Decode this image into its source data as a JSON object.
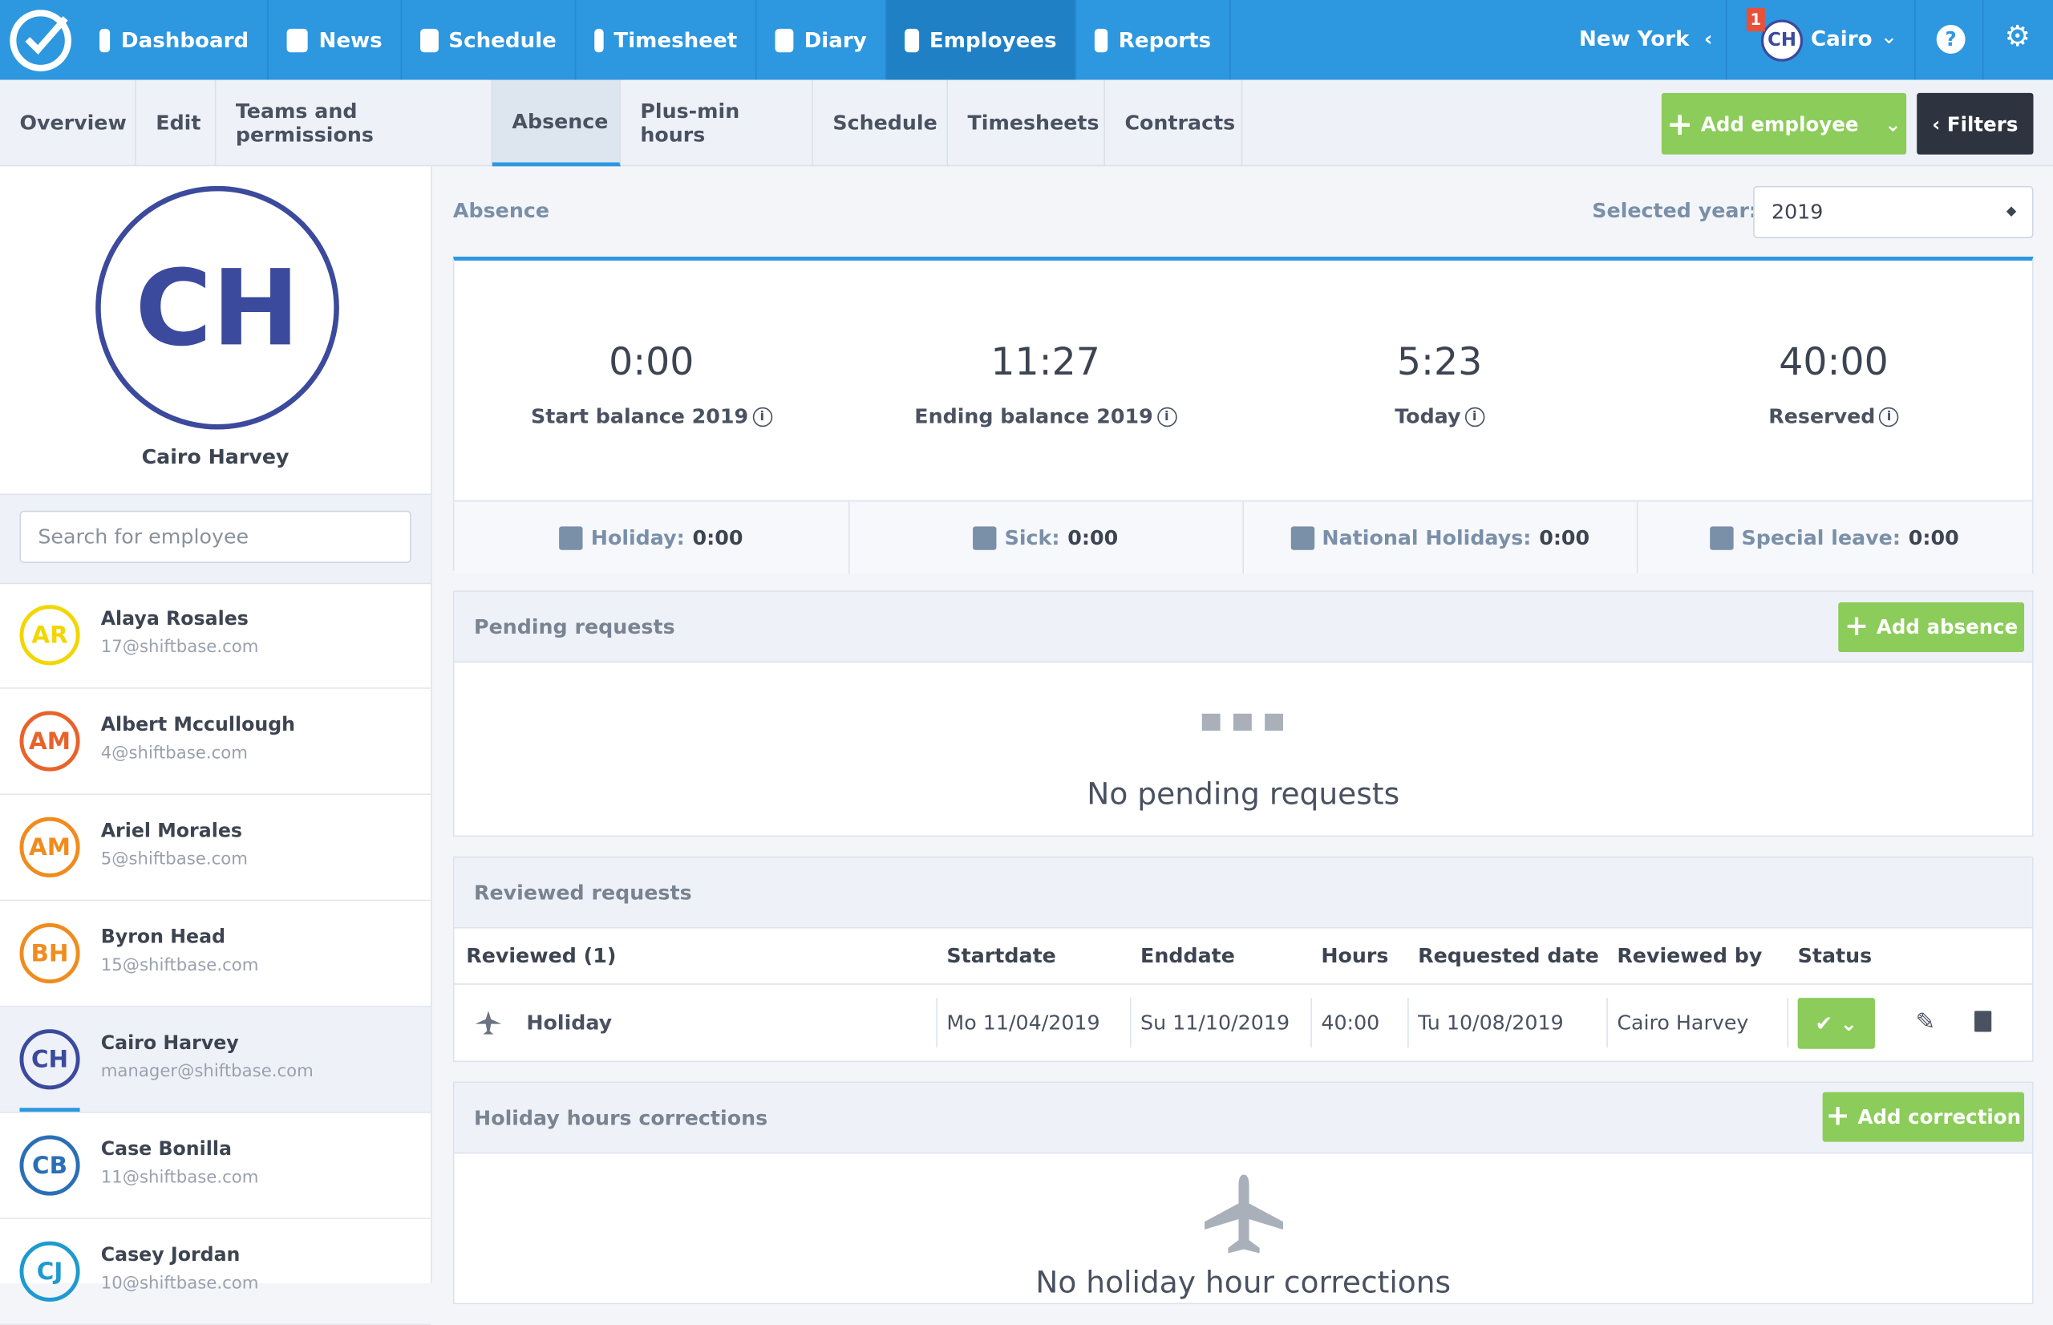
{
  "top_nav": {
    "items": [
      "Dashboard",
      "News",
      "Schedule",
      "Timesheet",
      "Diary",
      "Employees",
      "Reports"
    ],
    "active": "Employees",
    "location": "New York",
    "notification_badge": "1",
    "user_initials": "CH",
    "user_name": "Cairo"
  },
  "sub_nav": {
    "tabs": [
      "Overview",
      "Edit",
      "Teams and permissions",
      "Absence",
      "Plus-min hours",
      "Schedule",
      "Timesheets",
      "Contracts"
    ],
    "active": "Absence",
    "add_button": "Add employee",
    "filters_button": "Filters"
  },
  "profile": {
    "initials": "CH",
    "name": "Cairo Harvey"
  },
  "search": {
    "placeholder": "Search for employee"
  },
  "employees": [
    {
      "initials": "AR",
      "name": "Alaya Rosales",
      "email": "17@shiftbase.com",
      "color": "#f2d600"
    },
    {
      "initials": "AM",
      "name": "Albert Mccullough",
      "email": "4@shiftbase.com",
      "color": "#e8632b"
    },
    {
      "initials": "AM",
      "name": "Ariel Morales",
      "email": "5@shiftbase.com",
      "color": "#f08c1e"
    },
    {
      "initials": "BH",
      "name": "Byron Head",
      "email": "15@shiftbase.com",
      "color": "#f08c1e"
    },
    {
      "initials": "CH",
      "name": "Cairo Harvey",
      "email": "manager@shiftbase.com",
      "color": "#3b4a9c"
    },
    {
      "initials": "CB",
      "name": "Case Bonilla",
      "email": "11@shiftbase.com",
      "color": "#2a6fb5"
    },
    {
      "initials": "CJ",
      "name": "Casey Jordan",
      "email": "10@shiftbase.com",
      "color": "#1e9ad0"
    }
  ],
  "absence": {
    "title": "Absence",
    "year_label": "Selected year:",
    "year": "2019",
    "balances": [
      {
        "value": "0:00",
        "label": "Start balance 2019"
      },
      {
        "value": "11:27",
        "label": "Ending balance 2019"
      },
      {
        "value": "5:23",
        "label": "Today"
      },
      {
        "value": "40:00",
        "label": "Reserved"
      }
    ],
    "types": [
      {
        "label": "Holiday:",
        "value": "0:00"
      },
      {
        "label": "Sick:",
        "value": "0:00"
      },
      {
        "label": "National Holidays:",
        "value": "0:00"
      },
      {
        "label": "Special leave:",
        "value": "0:00"
      }
    ]
  },
  "pending": {
    "title": "Pending requests",
    "button": "Add absence",
    "empty": "No pending requests"
  },
  "reviewed": {
    "title": "Reviewed requests",
    "headers": [
      "Reviewed (1)",
      "Startdate",
      "Enddate",
      "Hours",
      "Requested date",
      "Reviewed by",
      "Status"
    ],
    "rows": [
      [
        "Holiday",
        "Mo 11/04/2019",
        "Su 11/10/2019",
        "40:00",
        "Tu 10/08/2019",
        "Cairo Harvey"
      ]
    ]
  },
  "corrections": {
    "title": "Holiday hours corrections",
    "button": "Add correction",
    "empty": "No holiday hour corrections"
  }
}
